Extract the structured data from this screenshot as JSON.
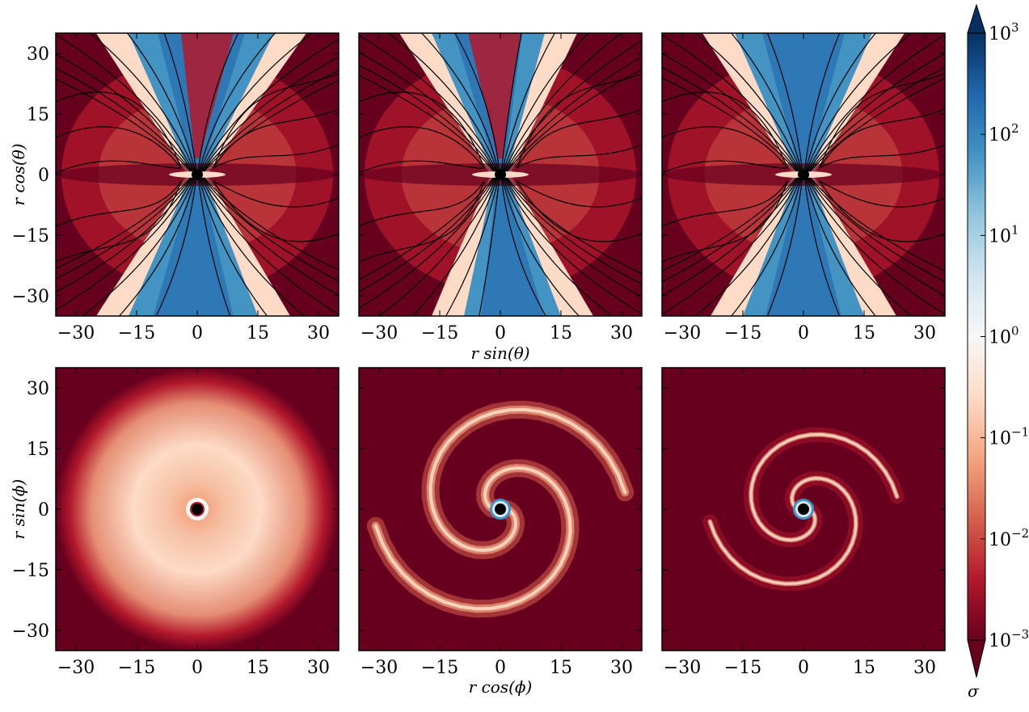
{
  "chart_data": {
    "type": "heatmap",
    "panels": [
      {
        "row": "top",
        "col": 1,
        "plane": "poloidal",
        "streamlines": true,
        "xlim": [
          -35,
          35
        ],
        "ylim": [
          -35,
          35
        ]
      },
      {
        "row": "top",
        "col": 2,
        "plane": "poloidal",
        "streamlines": true,
        "xlim": [
          -35,
          35
        ],
        "ylim": [
          -35,
          35
        ]
      },
      {
        "row": "top",
        "col": 3,
        "plane": "poloidal",
        "streamlines": true,
        "xlim": [
          -35,
          35
        ],
        "ylim": [
          -35,
          35
        ]
      },
      {
        "row": "bottom",
        "col": 1,
        "plane": "equatorial",
        "streamlines": false,
        "xlim": [
          -35,
          35
        ],
        "ylim": [
          -35,
          35
        ]
      },
      {
        "row": "bottom",
        "col": 2,
        "plane": "equatorial",
        "streamlines": false,
        "xlim": [
          -35,
          35
        ],
        "ylim": [
          -35,
          35
        ]
      },
      {
        "row": "bottom",
        "col": 3,
        "plane": "equatorial",
        "streamlines": false,
        "xlim": [
          -35,
          35
        ],
        "ylim": [
          -35,
          35
        ]
      }
    ],
    "ticks": [
      -30,
      -15,
      0,
      15,
      30
    ],
    "tick_labels": [
      "−30",
      "−15",
      "0",
      "15",
      "30"
    ],
    "labels": {
      "top_xlabel": "r sin(θ)",
      "top_ylabel": "r cos(θ)",
      "bottom_xlabel": "r cos(ϕ)",
      "bottom_ylabel": "r sin(ϕ)"
    },
    "colorbar": {
      "label": "σ",
      "scale": "log",
      "range": [
        0.001,
        1000
      ],
      "ticks": [
        {
          "value": 0.001,
          "base": "10",
          "exp": "−3"
        },
        {
          "value": 0.01,
          "base": "10",
          "exp": "−2"
        },
        {
          "value": 0.1,
          "base": "10",
          "exp": "−1"
        },
        {
          "value": 1,
          "base": "10",
          "exp": "0"
        },
        {
          "value": 10,
          "base": "10",
          "exp": "1"
        },
        {
          "value": 100,
          "base": "10",
          "exp": "2"
        },
        {
          "value": 1000,
          "base": "10",
          "exp": "3"
        }
      ],
      "extend": "both",
      "colors": [
        "#67001f",
        "#b2182b",
        "#d6604d",
        "#f4a582",
        "#fddbc7",
        "#f7f7f7",
        "#d1e5f0",
        "#92c5de",
        "#4393c3",
        "#2166ac",
        "#053061"
      ]
    },
    "central_object_color": "#000000"
  }
}
